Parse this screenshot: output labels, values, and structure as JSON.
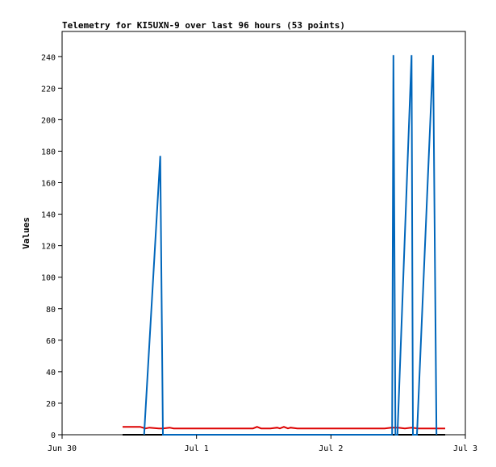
{
  "chart_data": {
    "type": "line",
    "title": "Telemetry for KI5UXN-9 over last 96 hours (53 points)",
    "ylabel": "Values",
    "xlabel": "",
    "x_ticks": [
      {
        "label": "Jun 30",
        "t": 0
      },
      {
        "label": "Jul 1",
        "t": 1
      },
      {
        "label": "Jul 2",
        "t": 2
      },
      {
        "label": "Jul 3",
        "t": 3
      }
    ],
    "xlim": [
      0,
      3
    ],
    "ylim": [
      0,
      256
    ],
    "y_ticks": [
      0,
      20,
      40,
      60,
      80,
      100,
      120,
      140,
      160,
      180,
      200,
      220,
      240
    ],
    "grid": false,
    "legend": "none",
    "series": [
      {
        "color": "#000000",
        "x": [
          0.45,
          2.85
        ],
        "y": [
          0,
          0
        ]
      },
      {
        "color": "#dd0000",
        "x": [
          0.45,
          0.58,
          0.62,
          0.65,
          0.72,
          0.75,
          0.8,
          0.83,
          1.0,
          1.2,
          1.42,
          1.45,
          1.48,
          1.55,
          1.6,
          1.62,
          1.65,
          1.68,
          1.7,
          1.75,
          1.8,
          2.0,
          2.2,
          2.4,
          2.45,
          2.5,
          2.55,
          2.6,
          2.65,
          2.7,
          2.85
        ],
        "y": [
          5,
          5,
          4,
          4.5,
          4,
          4,
          4.5,
          4,
          4,
          4,
          4,
          5,
          4,
          4,
          4.5,
          4,
          5,
          4,
          4.5,
          4,
          4,
          4,
          4,
          4,
          4.5,
          4.5,
          4,
          4.5,
          4,
          4,
          4
        ]
      },
      {
        "color": "#0066bb",
        "x": [
          0.61,
          0.73,
          0.75,
          0.76,
          2.455,
          2.465,
          2.48,
          2.495,
          2.6,
          2.61,
          2.62,
          2.64,
          2.76,
          2.785
        ],
        "y": [
          0,
          177,
          0,
          0,
          0,
          241,
          0,
          0,
          241,
          0,
          0,
          0,
          241,
          0
        ]
      }
    ]
  }
}
